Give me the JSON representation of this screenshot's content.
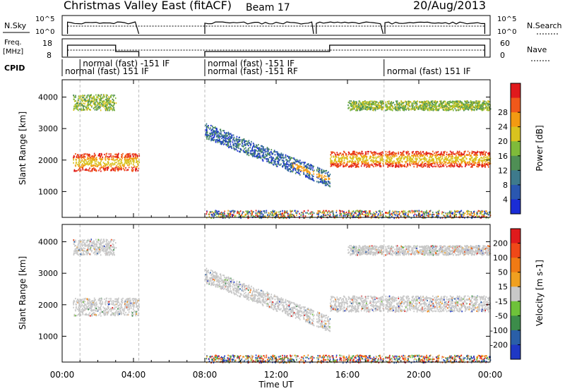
{
  "header": {
    "title": "Christmas Valley East (fitACF)",
    "beam": "Beam 17",
    "date": "20/Aug/2013"
  },
  "strip_labels": {
    "nsky": "N.Sky",
    "freq": "Freq.",
    "freq_unit": "[MHz]",
    "cpid": "CPID",
    "nsearch": "N.Search",
    "nave": "Nave",
    "log_hi": "10^5",
    "log_lo": "10^0",
    "freq_hi": "18",
    "freq_lo": "8",
    "nave_hi": "60",
    "nave_lo": "0"
  },
  "cpid_annotations": [
    {
      "text": "normal (fast) -151 IF",
      "hour": 1.0,
      "row": 0
    },
    {
      "text": "normal (fast) 151 IF",
      "hour": 0.0,
      "row": 1
    },
    {
      "text": "normal (fast) -151 IF",
      "hour": 8.0,
      "row": 0
    },
    {
      "text": "normal (fast) -151 RF",
      "hour": 8.0,
      "row": 1
    },
    {
      "text": "normal (fast) 151 IF",
      "hour": 18.05,
      "row": 1
    }
  ],
  "axes": {
    "x_label": "Time UT",
    "x_ticks": [
      "00:00",
      "04:00",
      "08:00",
      "12:00",
      "16:00",
      "20:00",
      "00:00"
    ],
    "y_label": "Slant Range [km]",
    "y_ticks": [
      "1000",
      "2000",
      "3000",
      "4000"
    ]
  },
  "colorbars": {
    "power": {
      "label": "Power [dB]",
      "ticks": [
        "4",
        "8",
        "12",
        "16",
        "20",
        "24",
        "28"
      ],
      "colors": [
        "#1a2cd6",
        "#2a57b0",
        "#3e7a8c",
        "#4f8f55",
        "#7fba3a",
        "#d9c21e",
        "#f29a12",
        "#f0581a",
        "#e0191c"
      ]
    },
    "velocity": {
      "label": "Velocity [m s-1]",
      "ticks": [
        "200",
        "100",
        "50",
        "15",
        "-15",
        "-50",
        "-100",
        "-200"
      ],
      "colors": [
        "#1f38c4",
        "#2a5fa8",
        "#3c8c4a",
        "#6ec23a",
        "#c8c8c8",
        "#f0a020",
        "#f07a14",
        "#f04818",
        "#e01a1c"
      ]
    }
  },
  "chart_data": {
    "type": "heatmap",
    "x_range_hours": [
      0,
      24
    ],
    "y_range_km": [
      180,
      4550
    ],
    "scan_gaps_hours": [
      [
        4.3,
        7.9
      ],
      [
        14.1,
        14.25
      ],
      [
        18.0,
        18.1
      ]
    ],
    "power_bands": [
      {
        "t0": 0.6,
        "t1": 4.3,
        "r_center": 1950,
        "r_halfwidth": 280,
        "level": "high"
      },
      {
        "t0": 0.6,
        "t1": 3.0,
        "r_center": 3850,
        "r_halfwidth": 250,
        "level": "mid"
      },
      {
        "t0": 8.0,
        "t1": 15.0,
        "r_center": 2950,
        "r_end": 1400,
        "r_halfwidth": 240,
        "level": "mixed"
      },
      {
        "t0": 15.0,
        "t1": 24.0,
        "r_center": 2050,
        "r_halfwidth": 250,
        "level": "high"
      },
      {
        "t0": 16.0,
        "t1": 24.0,
        "r_center": 3750,
        "r_halfwidth": 150,
        "level": "mid"
      },
      {
        "t0": 8.0,
        "t1": 24.0,
        "r_center": 300,
        "r_halfwidth": 120,
        "level": "low"
      }
    ],
    "velocity_dominant": "ground scatter near 0 m/s (grey) with scattered +/-50 to 200 m/s ionospheric echoes"
  }
}
